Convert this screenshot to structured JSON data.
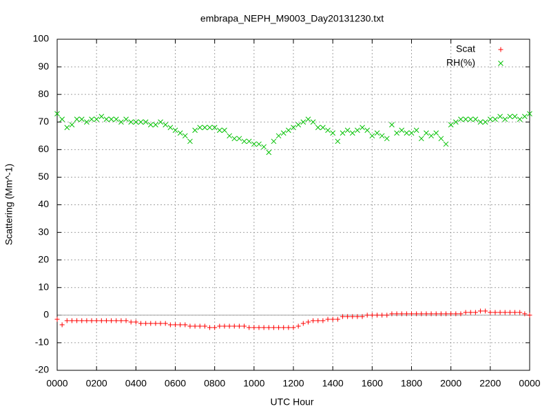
{
  "chart_data": {
    "type": "scatter",
    "title": "embrapa_NEPH_M9003_Day20131230.txt",
    "x_label": "UTC Hour",
    "y_label": "Scattering (Mm^-1)",
    "x": [
      0,
      0.25,
      0.5,
      0.75,
      1,
      1.25,
      1.5,
      1.75,
      2,
      2.25,
      2.5,
      2.75,
      3,
      3.25,
      3.5,
      3.75,
      4,
      4.25,
      4.5,
      4.75,
      5,
      5.25,
      5.5,
      5.75,
      6,
      6.25,
      6.5,
      6.75,
      7,
      7.25,
      7.5,
      7.75,
      8,
      8.25,
      8.5,
      8.75,
      9,
      9.25,
      9.5,
      9.75,
      10,
      10.25,
      10.5,
      10.75,
      11,
      11.25,
      11.5,
      11.75,
      12,
      12.25,
      12.5,
      12.75,
      13,
      13.25,
      13.5,
      13.75,
      14,
      14.25,
      14.5,
      14.75,
      15,
      15.25,
      15.5,
      15.75,
      16,
      16.25,
      16.5,
      16.75,
      17,
      17.25,
      17.5,
      17.75,
      18,
      18.25,
      18.5,
      18.75,
      19,
      19.25,
      19.5,
      19.75,
      20,
      20.25,
      20.5,
      20.75,
      21,
      21.25,
      21.5,
      21.75,
      22,
      22.25,
      22.5,
      22.75,
      23,
      23.25,
      23.5,
      23.75,
      24
    ],
    "series": [
      {
        "name": "Scat",
        "color": "#ff0000",
        "marker": "plus",
        "values": [
          -1.5,
          -3.5,
          -2,
          -2,
          -2,
          -2,
          -2,
          -2,
          -2,
          -2,
          -2,
          -2,
          -2,
          -2,
          -2,
          -2.5,
          -2.5,
          -3,
          -3,
          -3,
          -3,
          -3,
          -3,
          -3.5,
          -3.5,
          -3.5,
          -3.5,
          -4,
          -4,
          -4,
          -4,
          -4.5,
          -4.5,
          -4,
          -4,
          -4,
          -4,
          -4,
          -4,
          -4.5,
          -4.5,
          -4.5,
          -4.5,
          -4.5,
          -4.5,
          -4.5,
          -4.5,
          -4.5,
          -4.5,
          -4,
          -3,
          -2.5,
          -2,
          -2,
          -2,
          -1.5,
          -1.5,
          -1.5,
          -0.5,
          -0.5,
          -0.5,
          -0.5,
          -0.5,
          0,
          0,
          0,
          0,
          0,
          0.5,
          0.5,
          0.5,
          0.5,
          0.5,
          0.5,
          0.5,
          0.5,
          0.5,
          0.5,
          0.5,
          0.5,
          0.5,
          0.5,
          0.5,
          1,
          1,
          1,
          1.5,
          1.5,
          1,
          1,
          1,
          1,
          1,
          1,
          1,
          0.5,
          0
        ]
      },
      {
        "name": "RH(%)",
        "color": "#00c000",
        "marker": "cross",
        "values": [
          73,
          71,
          68,
          69,
          71,
          71,
          70,
          71,
          71,
          72,
          71,
          71,
          71,
          70,
          71,
          70,
          70,
          70,
          70,
          69,
          69,
          70,
          69,
          68,
          67,
          66,
          65,
          63,
          67,
          68,
          68,
          68,
          68,
          67,
          67,
          65,
          64,
          64,
          63,
          63,
          62,
          62,
          61,
          59,
          63,
          65,
          66,
          67,
          68,
          69,
          70,
          71,
          70,
          68,
          68,
          67,
          66,
          63,
          66,
          67,
          66,
          67,
          68,
          67,
          65,
          66,
          65,
          64,
          69,
          66,
          67,
          66,
          66,
          67,
          64,
          66,
          65,
          66,
          64,
          62,
          69,
          70,
          71,
          71,
          71,
          71,
          70,
          70,
          71,
          71,
          72,
          71,
          72,
          72,
          71,
          72,
          73
        ]
      }
    ],
    "xlim": [
      0,
      24
    ],
    "xticks": [
      {
        "value": 0,
        "label": "0000"
      },
      {
        "value": 2,
        "label": "0200"
      },
      {
        "value": 4,
        "label": "0400"
      },
      {
        "value": 6,
        "label": "0600"
      },
      {
        "value": 8,
        "label": "0800"
      },
      {
        "value": 10,
        "label": "1000"
      },
      {
        "value": 12,
        "label": "1200"
      },
      {
        "value": 14,
        "label": "1400"
      },
      {
        "value": 16,
        "label": "1600"
      },
      {
        "value": 18,
        "label": "1800"
      },
      {
        "value": 20,
        "label": "2000"
      },
      {
        "value": 22,
        "label": "2200"
      },
      {
        "value": 24,
        "label": "0000"
      }
    ],
    "ylim": [
      -20,
      100
    ],
    "yticks": [
      -20,
      -10,
      0,
      10,
      20,
      30,
      40,
      50,
      60,
      70,
      80,
      90,
      100
    ],
    "grid": true,
    "legend": "top-right"
  }
}
